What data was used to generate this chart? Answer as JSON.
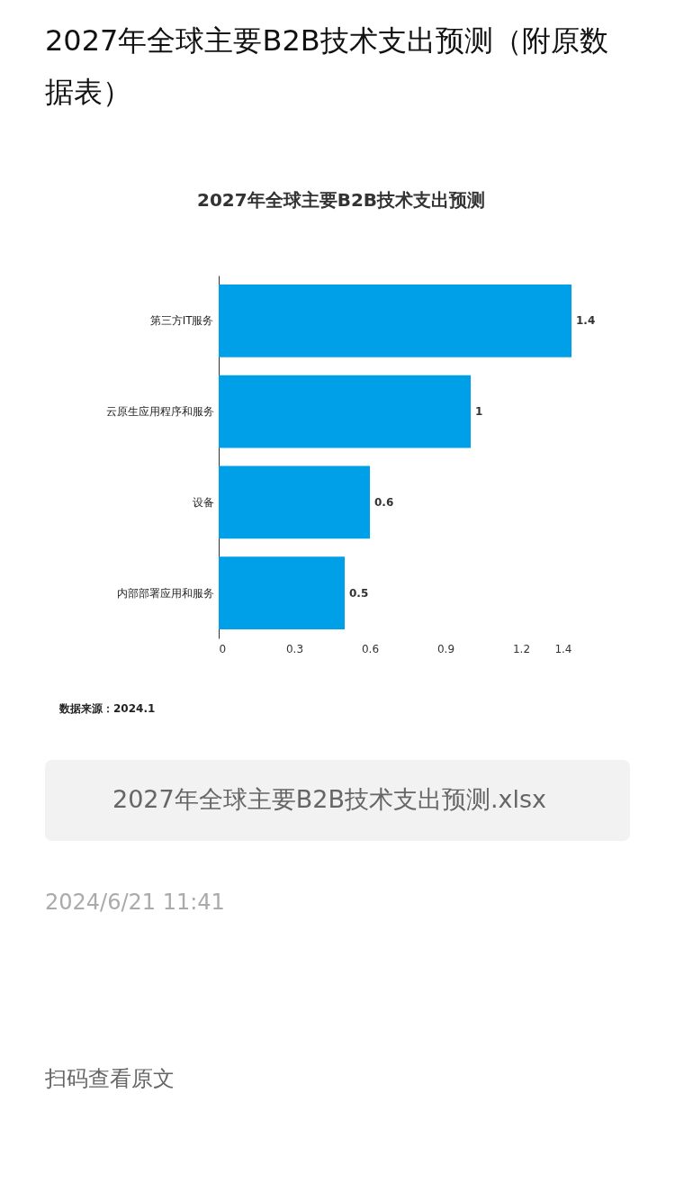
{
  "chart_data": {
    "type": "bar",
    "orientation": "horizontal",
    "title": "2027年全球主要B2B技术支出预测（附原数据表）",
    "subtitle": "2027年全球主要B2B技术支出预测",
    "categories": [
      "第三方IT服务",
      "云原生应用程序和服务",
      "设备",
      "内部部署应用和服务"
    ],
    "values": [
      1.4,
      1,
      0.6,
      0.5
    ],
    "color": "#00a0e9",
    "xlim": [
      0,
      1.4
    ],
    "xticks": [
      0,
      0.3,
      0.6,
      0.9,
      1.2,
      1.4
    ],
    "data_labels": true,
    "grid": false,
    "annotations": [
      "数据来源：2024.1",
      "2027年全球主要B2B技术支出预测.xlsx",
      "2024/6/21 11:41",
      "扫码查看原文"
    ]
  }
}
